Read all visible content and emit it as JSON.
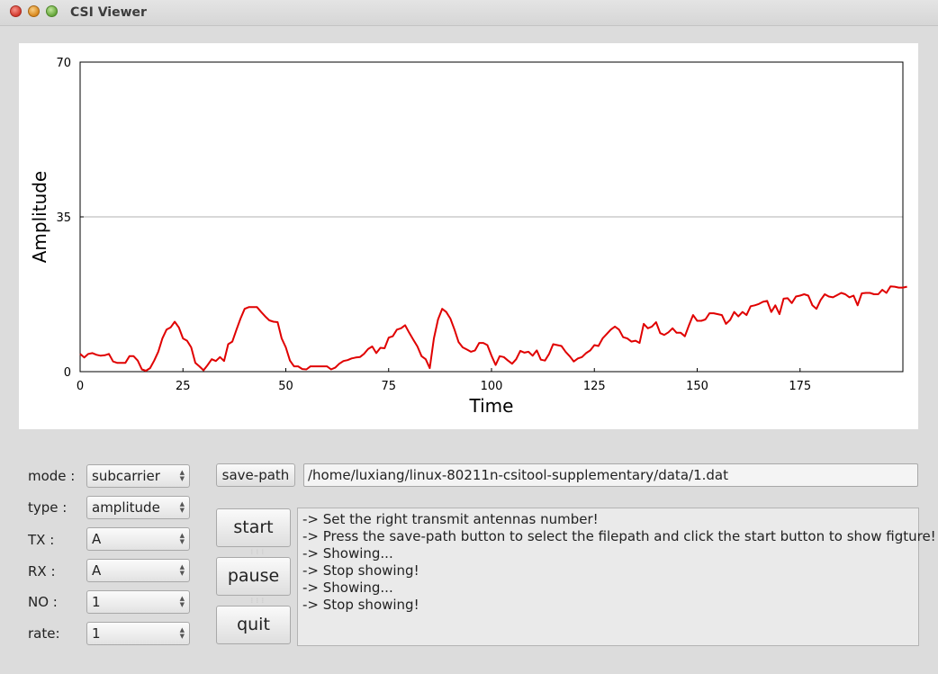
{
  "window": {
    "title": "CSI Viewer"
  },
  "controls": [
    {
      "label": "mode :",
      "value": "subcarrier"
    },
    {
      "label": "type :",
      "value": "amplitude"
    },
    {
      "label": "TX :",
      "value": "A"
    },
    {
      "label": "RX :",
      "value": "A"
    },
    {
      "label": "NO :",
      "value": "1"
    },
    {
      "label": "rate:",
      "value": "1"
    }
  ],
  "save_path": {
    "button": "save-path",
    "value": "/home/luxiang/linux-80211n-csitool-supplementary/data/1.dat"
  },
  "buttons": {
    "start": "start",
    "pause": "pause",
    "quit": "quit"
  },
  "log": [
    "-> Set the right transmit antennas number!",
    "-> Press the save-path button to select the filepath and click the start button to show figture!",
    "-> Showing...",
    "-> Stop showing!",
    "-> Showing...",
    "-> Stop showing!"
  ],
  "chart_data": {
    "type": "line",
    "xlabel": "Time",
    "ylabel": "Amplitude",
    "xlim": [
      0,
      200
    ],
    "ylim": [
      0,
      70
    ],
    "xticks": [
      "0",
      "25",
      "50",
      "75",
      "100",
      "125",
      "150",
      "175"
    ],
    "yticks": [
      "0",
      "35",
      "70"
    ],
    "grid_y": [
      35
    ],
    "color": "#e00000",
    "series": [
      {
        "values": [
          4,
          3.2,
          4,
          4.2,
          3.8,
          3.6,
          3.7,
          4,
          2.3,
          2,
          2,
          2,
          3.5,
          3.5,
          2.5,
          0.5,
          0.2,
          0.8,
          2.5,
          4.5,
          7.5,
          9.5,
          10,
          11.3,
          10,
          7.5,
          7,
          5.5,
          2,
          1.2,
          0.3,
          1.5,
          2.8,
          2.4,
          3.3,
          2.4,
          6.2,
          6.8,
          9.5,
          12,
          14.2,
          14.6,
          14.6,
          14.6,
          13.5,
          12.5,
          11.6,
          11.3,
          11.2,
          7.5,
          5.5,
          2.5,
          1.2,
          1.2,
          0.6,
          0.5,
          1.2,
          1.2,
          1.2,
          1.2,
          1.2,
          0.5,
          0.9,
          1.8,
          2.4,
          2.6,
          3,
          3.2,
          3.3,
          4,
          5.1,
          5.7,
          4.2,
          5.4,
          5.3,
          7.7,
          8,
          9.5,
          9.8,
          10.5,
          8.8,
          7.2,
          5.7,
          3.5,
          2.8,
          0.8,
          7.5,
          11.8,
          14.2,
          13.5,
          12,
          9.5,
          6.7,
          5.5,
          5,
          4.5,
          4.8,
          6.5,
          6.5,
          6,
          3.6,
          1.5,
          3.5,
          3.3,
          2.5,
          1.8,
          2.8,
          4.7,
          4.3,
          4.5,
          3.6,
          4.8,
          2.7,
          2.5,
          4,
          6.2,
          6,
          5.8,
          4.5,
          3.5,
          2.3,
          3,
          3.3,
          4.2,
          4.8,
          6,
          5.8,
          7.5,
          8.5,
          9.5,
          10.2,
          9.5,
          7.8,
          7.5,
          6.8,
          7,
          6.5,
          10.8,
          9.8,
          10.2,
          11.2,
          8.7,
          8.3,
          8.9,
          9.8,
          8.8,
          8.8,
          8,
          10.5,
          12.8,
          11.5,
          11.5,
          11.8,
          13.2,
          13.2,
          13,
          12.8,
          10.8,
          11.7,
          13.5,
          12.5,
          13.5,
          12.8,
          14.8,
          15,
          15.3,
          15.8,
          16,
          13.5,
          15,
          13,
          16.5,
          16.6,
          15.5,
          17,
          17.2,
          17.5,
          17.2,
          15,
          14.2,
          16.2,
          17.5,
          17,
          16.8,
          17.3,
          17.8,
          17.5,
          16.8,
          17.2,
          15,
          17.7,
          17.8,
          17.8,
          17.5,
          17.5,
          18.5,
          17.8,
          19.3,
          19.2,
          19,
          19,
          19.2
        ]
      }
    ]
  }
}
